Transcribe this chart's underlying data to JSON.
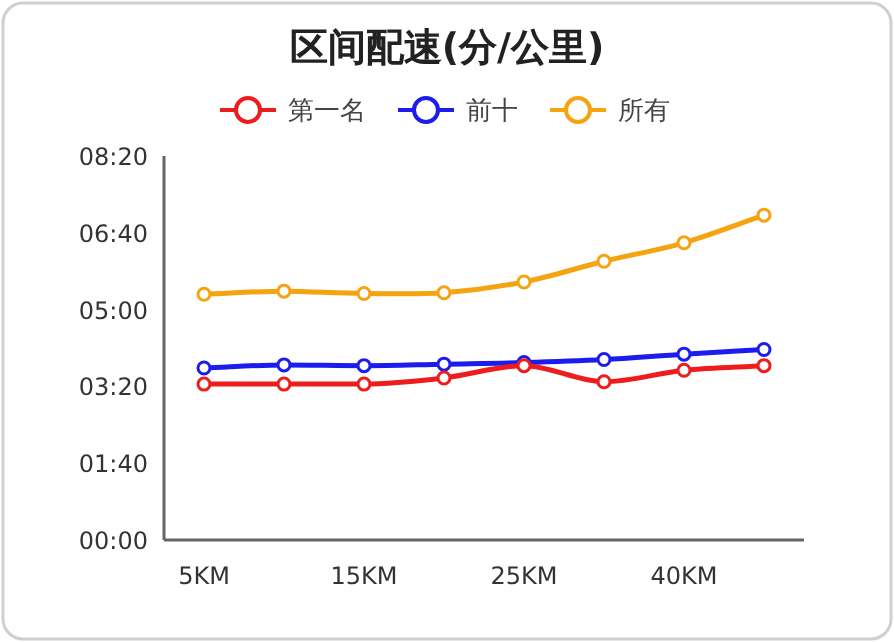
{
  "chart_data": {
    "type": "line",
    "title": "区间配速(分/公里)",
    "categories": [
      "5KM",
      null,
      "15KM",
      null,
      "25KM",
      null,
      "40KM",
      null
    ],
    "series": [
      {
        "name": "第一名",
        "color": "#ee1c1c",
        "values": [
          203,
          203,
          203,
          211,
          227,
          206,
          221,
          227
        ]
      },
      {
        "name": "前十",
        "color": "#1c1cee",
        "values": [
          224,
          228,
          227,
          229,
          231,
          235,
          242,
          248
        ]
      },
      {
        "name": "所有",
        "color": "#f5a30f",
        "values": [
          320,
          324,
          321,
          322,
          336,
          363,
          387,
          423
        ]
      }
    ],
    "ylim": [
      0,
      500
    ],
    "yticks": [
      {
        "value": 0,
        "label": "00:00"
      },
      {
        "value": 100,
        "label": "01:40"
      },
      {
        "value": 200,
        "label": "03:20"
      },
      {
        "value": 300,
        "label": "05:00"
      },
      {
        "value": 400,
        "label": "06:40"
      },
      {
        "value": 500,
        "label": "08:20"
      }
    ],
    "legend": "top",
    "marker": "circle",
    "line_style": "solid",
    "grid": false
  }
}
